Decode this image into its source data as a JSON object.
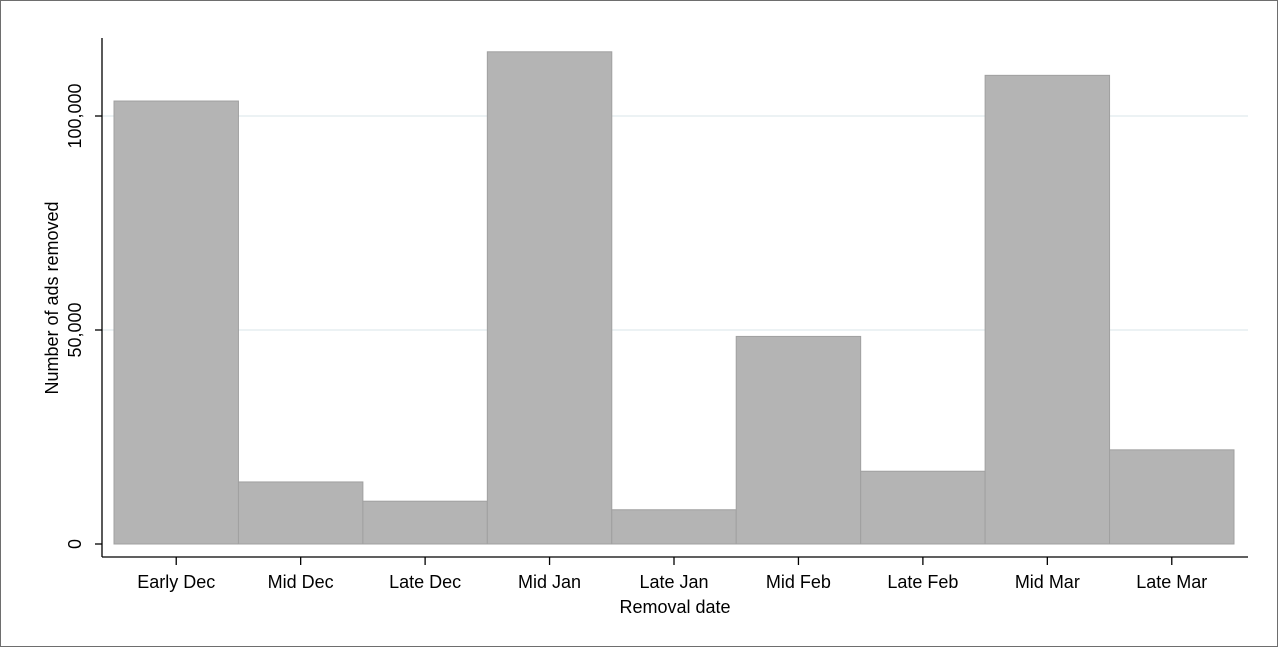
{
  "chart_data": {
    "type": "bar",
    "title": "",
    "xlabel": "Removal date",
    "ylabel": "Number of ads removed",
    "categories": [
      "Early Dec",
      "Mid Dec",
      "Late Dec",
      "Mid Jan",
      "Late Jan",
      "Mid Feb",
      "Late Feb",
      "Mid Mar",
      "Late Mar"
    ],
    "values": [
      103500,
      14500,
      10000,
      115000,
      8000,
      48500,
      17000,
      109500,
      22000
    ],
    "ylim": [
      0,
      118000
    ],
    "yticks": [
      0,
      50000,
      100000
    ],
    "ytick_labels": [
      "0",
      "50,000",
      "100,000"
    ],
    "grid": true,
    "bar_color": "#b4b4b4",
    "bar_edge_color": "#a0a0a0",
    "gridline_color": "#e6eef0",
    "axis_color": "#000000"
  }
}
